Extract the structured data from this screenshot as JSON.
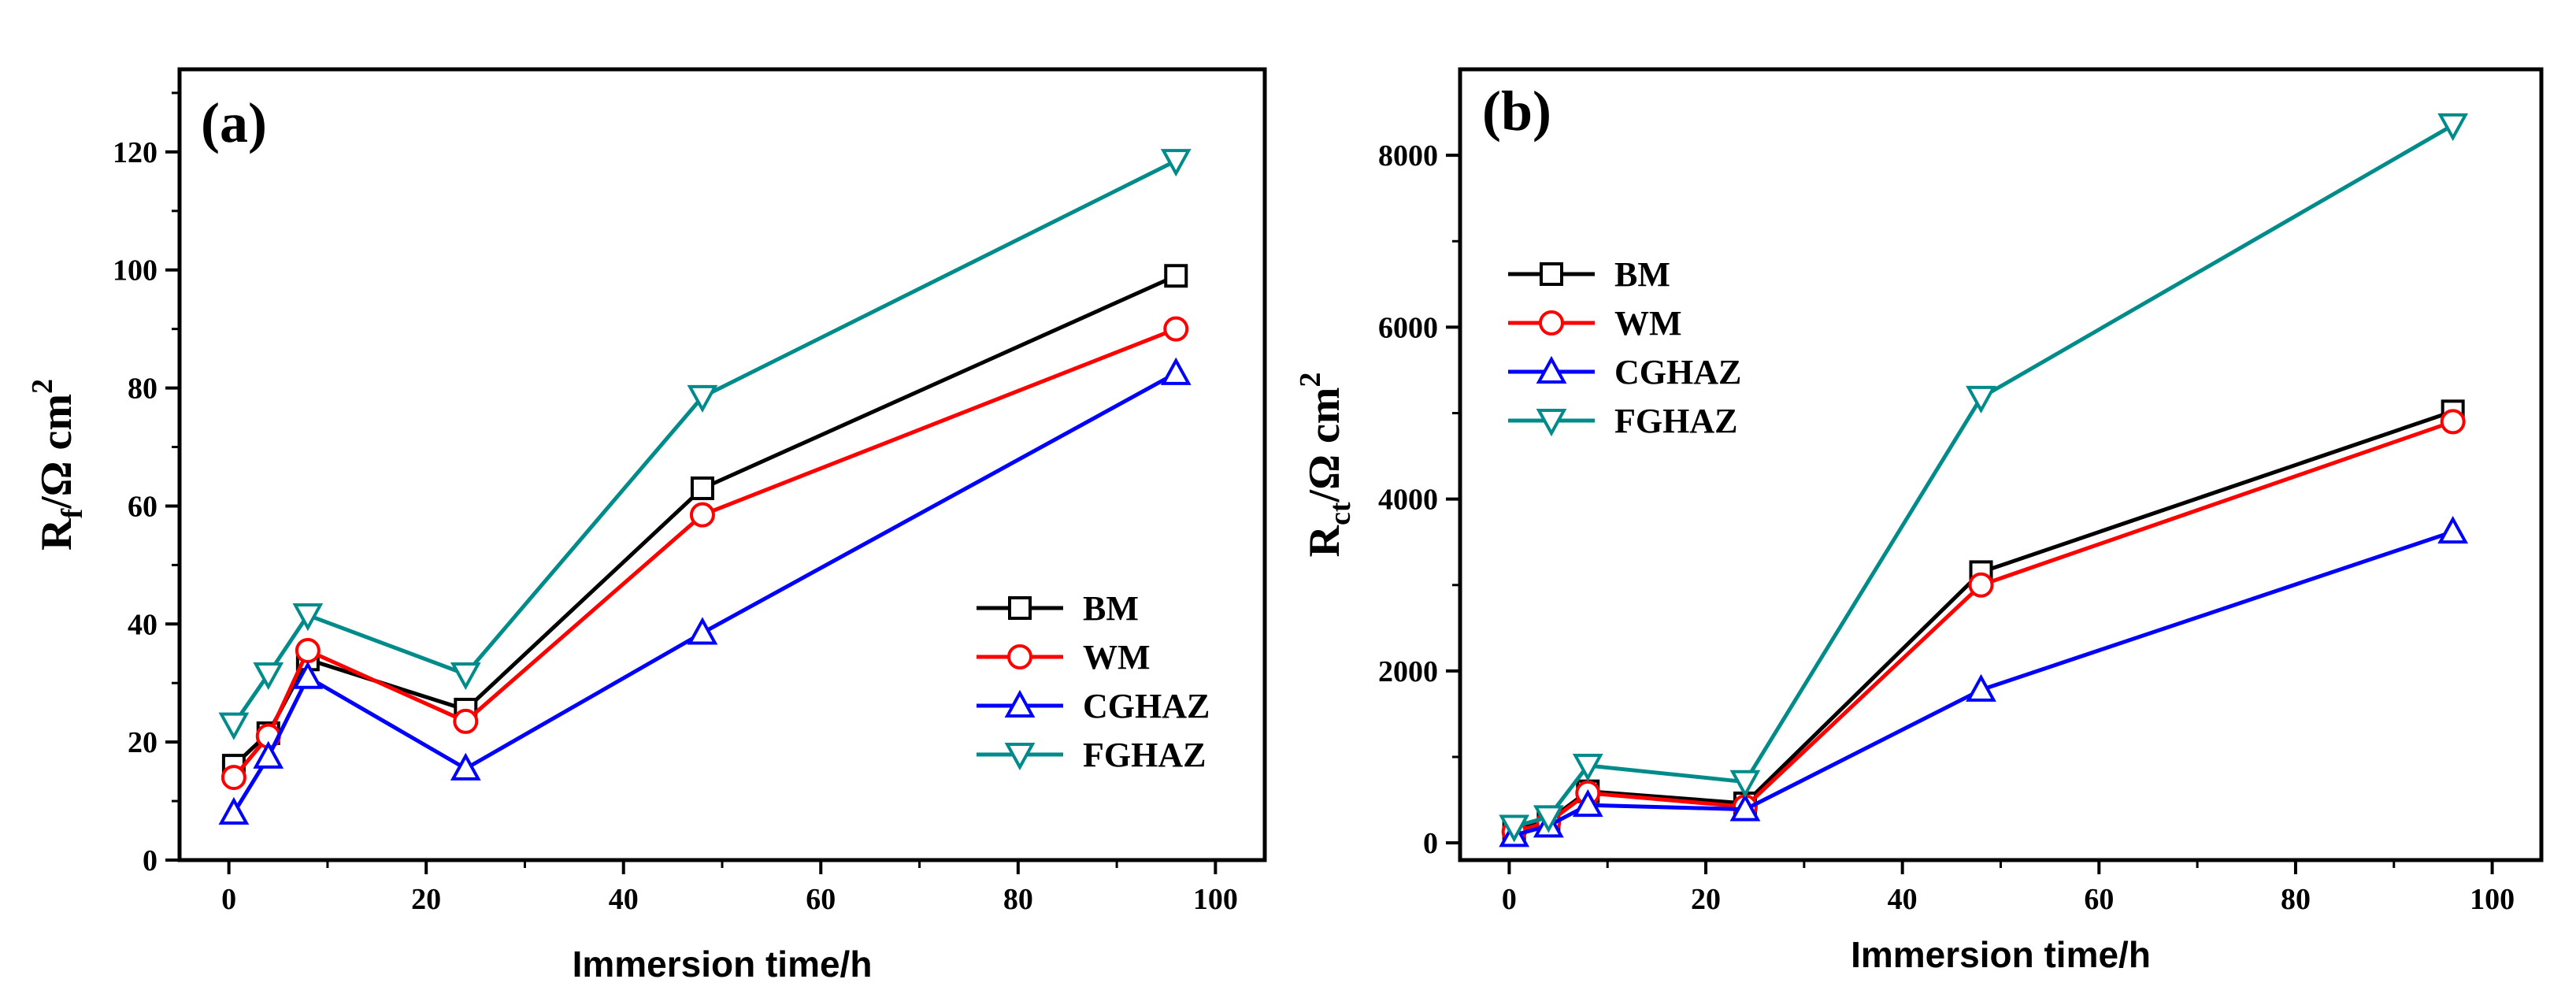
{
  "chart_data": [
    {
      "type": "line",
      "panel_label": "(a)",
      "xlabel": "Immersion time/h",
      "ylabel": {
        "main": "R",
        "sub": "f",
        "rest": "/Ω cm",
        "sup": "2"
      },
      "xlim": [
        -5,
        105
      ],
      "ylim": [
        0,
        134
      ],
      "xticks": [
        0,
        20,
        40,
        60,
        80,
        100
      ],
      "yticks": [
        0,
        20,
        40,
        60,
        80,
        100,
        120
      ],
      "x": [
        0.5,
        4,
        8,
        24,
        48,
        96
      ],
      "legend_position": "bottom-right",
      "series": [
        {
          "name": "BM",
          "color": "#000000",
          "marker": "square",
          "values": [
            16,
            21.5,
            34,
            25.5,
            63,
            99
          ]
        },
        {
          "name": "WM",
          "color": "#ff0000",
          "marker": "circle",
          "values": [
            14,
            21,
            35.5,
            23.5,
            58.5,
            90
          ]
        },
        {
          "name": "CGHAZ",
          "color": "#0000ff",
          "marker": "triangle-up",
          "values": [
            8,
            17.5,
            31,
            15.5,
            38.5,
            82.5
          ]
        },
        {
          "name": "FGHAZ",
          "color": "#008b8b",
          "marker": "triangle-down",
          "values": [
            23,
            31.5,
            41.5,
            31.5,
            78.5,
            118.5
          ]
        }
      ]
    },
    {
      "type": "line",
      "panel_label": "(b)",
      "xlabel": "Immersion time/h",
      "ylabel": {
        "main": "R",
        "sub": "ct",
        "rest": "/Ω cm",
        "sup": "2"
      },
      "xlim": [
        -5,
        105
      ],
      "ylim": [
        -200,
        9000
      ],
      "xticks": [
        0,
        20,
        40,
        60,
        80,
        100
      ],
      "yticks": [
        0,
        2000,
        4000,
        6000,
        8000
      ],
      "x": [
        0.5,
        4,
        8,
        24,
        48,
        96
      ],
      "legend_position": "top-left",
      "series": [
        {
          "name": "BM",
          "color": "#000000",
          "marker": "square",
          "values": [
            150,
            260,
            600,
            460,
            3150,
            5020
          ]
        },
        {
          "name": "WM",
          "color": "#ff0000",
          "marker": "circle",
          "values": [
            130,
            240,
            580,
            420,
            3000,
            4900
          ]
        },
        {
          "name": "CGHAZ",
          "color": "#0000ff",
          "marker": "triangle-up",
          "values": [
            90,
            200,
            440,
            390,
            1780,
            3620
          ]
        },
        {
          "name": "FGHAZ",
          "color": "#008b8b",
          "marker": "triangle-down",
          "values": [
            190,
            300,
            900,
            710,
            5180,
            8350
          ]
        }
      ]
    }
  ]
}
